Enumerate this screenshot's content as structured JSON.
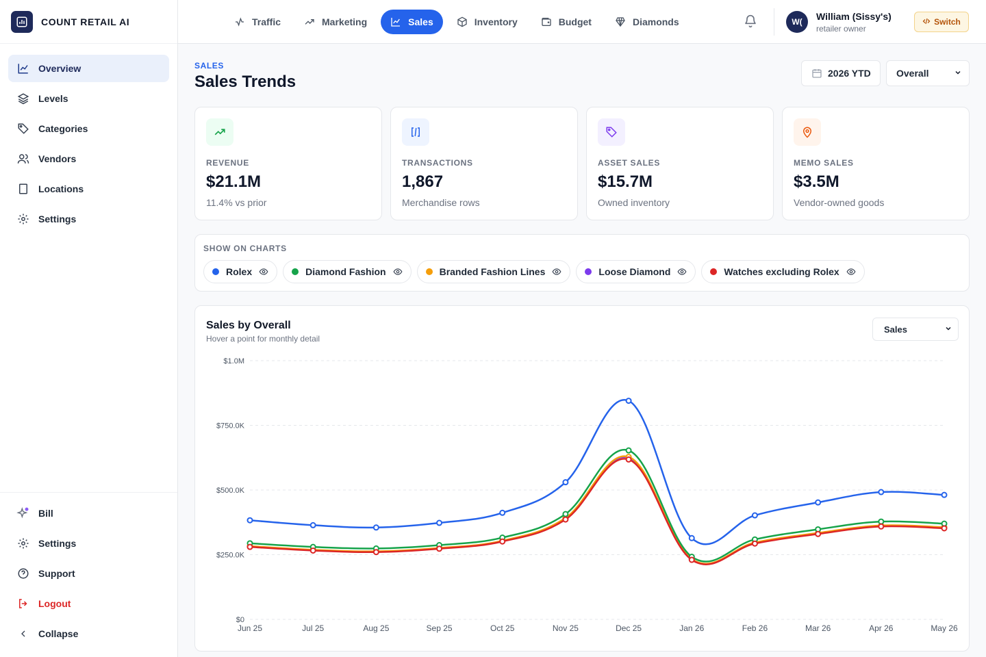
{
  "brand": {
    "name": "COUNT RETAIL AI"
  },
  "sidebar": {
    "items": [
      {
        "label": "Overview",
        "icon": "chart-line-icon",
        "active": true
      },
      {
        "label": "Levels",
        "icon": "layers-icon"
      },
      {
        "label": "Categories",
        "icon": "tag-icon"
      },
      {
        "label": "Vendors",
        "icon": "users-icon"
      },
      {
        "label": "Locations",
        "icon": "building-icon"
      },
      {
        "label": "Settings",
        "icon": "gear-icon"
      }
    ],
    "bottom": [
      {
        "label": "Bill",
        "icon": "sparkles-icon"
      },
      {
        "label": "Settings",
        "icon": "gear-icon"
      },
      {
        "label": "Support",
        "icon": "help-circle-icon"
      },
      {
        "label": "Logout",
        "icon": "logout-icon"
      },
      {
        "label": "Collapse",
        "icon": "chevron-left-icon"
      }
    ]
  },
  "topnav": {
    "tabs": [
      {
        "label": "Traffic",
        "icon": "activity-icon"
      },
      {
        "label": "Marketing",
        "icon": "trending-up-icon"
      },
      {
        "label": "Sales",
        "icon": "chart-line-icon",
        "active": true
      },
      {
        "label": "Inventory",
        "icon": "package-icon"
      },
      {
        "label": "Budget",
        "icon": "wallet-icon"
      },
      {
        "label": "Diamonds",
        "icon": "diamond-icon"
      }
    ],
    "user": {
      "initials": "W(",
      "name": "William (Sissy's)",
      "role": "retailer owner"
    },
    "switch_label": "Switch"
  },
  "header": {
    "kicker": "SALES",
    "title": "Sales Trends",
    "period": "2026 YTD",
    "scope": "Overall"
  },
  "kpis": [
    {
      "label": "REVENUE",
      "value": "$21.1M",
      "sub": "11.4% vs prior",
      "icon": "trending-up-icon",
      "color": "#16a34a",
      "bg": "#ecfdf3"
    },
    {
      "label": "TRANSACTIONS",
      "value": "1,867",
      "sub": "Merchandise rows",
      "icon": "columns-icon",
      "color": "#2563eb",
      "bg": "#eef4ff"
    },
    {
      "label": "ASSET SALES",
      "value": "$15.7M",
      "sub": "Owned inventory",
      "icon": "tag-icon",
      "color": "#7c3aed",
      "bg": "#f3f0ff"
    },
    {
      "label": "MEMO SALES",
      "value": "$3.5M",
      "sub": "Vendor-owned goods",
      "icon": "map-pin-icon",
      "color": "#ea580c",
      "bg": "#fff4ec"
    }
  ],
  "show_on_charts": {
    "title": "SHOW ON CHARTS",
    "chips": [
      {
        "label": "Rolex",
        "color": "#2563eb"
      },
      {
        "label": "Diamond Fashion",
        "color": "#16a34a"
      },
      {
        "label": "Branded Fashion Lines",
        "color": "#f59e0b"
      },
      {
        "label": "Loose Diamond",
        "color": "#7c3aed"
      },
      {
        "label": "Watches excluding Rolex",
        "color": "#dc2626"
      }
    ]
  },
  "chart_card": {
    "title": "Sales by Overall",
    "subtitle": "Hover a point for monthly detail",
    "metric": "Sales"
  },
  "chart_data": {
    "type": "line",
    "x": [
      "Jun 25",
      "Jul 25",
      "Aug 25",
      "Sep 25",
      "Oct 25",
      "Nov 25",
      "Dec 25",
      "Jan 26",
      "Feb 26",
      "Mar 26",
      "Apr 26",
      "May 26"
    ],
    "ylim": [
      0,
      1000000
    ],
    "yticks": [
      "$0",
      "$250.0K",
      "$500.0K",
      "$750.0K",
      "$1.0M"
    ],
    "grid": true,
    "series": [
      {
        "name": "Loose Diamond",
        "color": "#7c3aed",
        "values": [
          282000,
          268000,
          262000,
          275000,
          303000,
          390000,
          625000,
          232000,
          296000,
          333000,
          362000,
          355000
        ]
      },
      {
        "name": "Branded Fashion Lines",
        "color": "#f59e0b",
        "values": [
          283000,
          269000,
          263000,
          276000,
          304000,
          392000,
          628000,
          233000,
          297000,
          334000,
          363000,
          356000
        ]
      },
      {
        "name": "Diamond Fashion",
        "color": "#16a34a",
        "values": [
          294000,
          280000,
          274000,
          287000,
          316000,
          407000,
          653000,
          242000,
          309000,
          348000,
          378000,
          370000
        ]
      },
      {
        "name": "Watches excluding Rolex",
        "color": "#dc2626",
        "values": [
          280000,
          266000,
          260000,
          273000,
          301000,
          386000,
          618000,
          230000,
          293000,
          330000,
          359000,
          352000
        ]
      },
      {
        "name": "Rolex",
        "color": "#2563eb",
        "values": [
          383000,
          364000,
          355000,
          373000,
          412000,
          530000,
          845000,
          314000,
          402000,
          452000,
          492000,
          481000
        ]
      }
    ]
  }
}
